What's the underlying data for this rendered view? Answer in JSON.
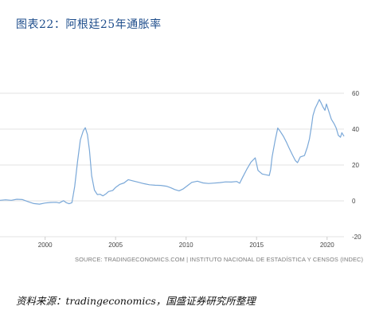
{
  "figure": {
    "title": "图表22：阿根廷25年通胀率",
    "caption": "资料来源：tradingeconomics，国盛证券研究所整理"
  },
  "chart_data": {
    "type": "line",
    "title": "",
    "xlabel": "",
    "ylabel": "",
    "source": "SOURCE: TRADINGECONOMICS.COM | INSTITUTO NACIONAL DE ESTADÍSTICA Y CENSOS (INDEC)",
    "x_ticks": [
      2000,
      2005,
      2010,
      2015,
      2020
    ],
    "y_ticks": [
      60,
      40,
      20,
      0,
      -20
    ],
    "xlim": [
      1996.8,
      2021.2
    ],
    "ylim": [
      -20,
      60
    ],
    "y_axis_position": "right",
    "grid": "horizontal",
    "line_color": "#7aa8d8",
    "series": [
      {
        "name": "",
        "points": [
          [
            1996.8,
            0.3
          ],
          [
            1997.2,
            0.6
          ],
          [
            1997.6,
            0.3
          ],
          [
            1998.0,
            0.9
          ],
          [
            1998.4,
            0.7
          ],
          [
            1998.8,
            -0.5
          ],
          [
            1999.2,
            -1.5
          ],
          [
            1999.6,
            -1.8
          ],
          [
            2000.0,
            -1.2
          ],
          [
            2000.4,
            -0.9
          ],
          [
            2000.8,
            -0.8
          ],
          [
            2001.0,
            -1.2
          ],
          [
            2001.3,
            0.1
          ],
          [
            2001.5,
            -1.0
          ],
          [
            2001.7,
            -1.6
          ],
          [
            2001.9,
            -1.0
          ],
          [
            2002.1,
            8.0
          ],
          [
            2002.3,
            22.0
          ],
          [
            2002.5,
            34.0
          ],
          [
            2002.7,
            39.0
          ],
          [
            2002.85,
            40.8
          ],
          [
            2003.0,
            37.0
          ],
          [
            2003.15,
            28.0
          ],
          [
            2003.3,
            14.0
          ],
          [
            2003.5,
            6.0
          ],
          [
            2003.7,
            3.5
          ],
          [
            2003.9,
            3.7
          ],
          [
            2004.1,
            2.8
          ],
          [
            2004.3,
            3.8
          ],
          [
            2004.5,
            5.2
          ],
          [
            2004.8,
            5.8
          ],
          [
            2005.0,
            7.5
          ],
          [
            2005.3,
            9.2
          ],
          [
            2005.6,
            10.0
          ],
          [
            2005.9,
            11.8
          ],
          [
            2006.2,
            11.2
          ],
          [
            2006.6,
            10.4
          ],
          [
            2007.0,
            9.6
          ],
          [
            2007.4,
            9.0
          ],
          [
            2007.8,
            8.7
          ],
          [
            2008.2,
            8.6
          ],
          [
            2008.6,
            8.2
          ],
          [
            2008.9,
            7.4
          ],
          [
            2009.2,
            6.3
          ],
          [
            2009.5,
            5.6
          ],
          [
            2009.8,
            6.7
          ],
          [
            2010.1,
            8.5
          ],
          [
            2010.4,
            10.3
          ],
          [
            2010.8,
            11.0
          ],
          [
            2011.2,
            10.0
          ],
          [
            2011.6,
            9.7
          ],
          [
            2012.0,
            9.9
          ],
          [
            2012.4,
            10.2
          ],
          [
            2012.8,
            10.6
          ],
          [
            2013.2,
            10.5
          ],
          [
            2013.6,
            10.8
          ],
          [
            2013.8,
            9.8
          ],
          [
            2014.0,
            13.0
          ],
          [
            2014.3,
            17.5
          ],
          [
            2014.6,
            21.5
          ],
          [
            2014.9,
            24.0
          ],
          [
            2015.1,
            17.0
          ],
          [
            2015.4,
            15.0
          ],
          [
            2015.7,
            14.5
          ],
          [
            2015.9,
            14.2
          ],
          [
            2016.0,
            17.5
          ],
          [
            2016.1,
            24.5
          ],
          [
            2016.3,
            33.0
          ],
          [
            2016.5,
            40.6
          ],
          [
            2016.7,
            38.5
          ],
          [
            2016.9,
            36.0
          ],
          [
            2017.1,
            33.0
          ],
          [
            2017.3,
            29.5
          ],
          [
            2017.55,
            25.5
          ],
          [
            2017.75,
            22.5
          ],
          [
            2017.9,
            21.3
          ],
          [
            2018.1,
            24.5
          ],
          [
            2018.4,
            25.3
          ],
          [
            2018.6,
            30.0
          ],
          [
            2018.75,
            34.5
          ],
          [
            2018.9,
            42.0
          ],
          [
            2019.0,
            47.5
          ],
          [
            2019.15,
            51.5
          ],
          [
            2019.3,
            54.0
          ],
          [
            2019.45,
            56.5
          ],
          [
            2019.55,
            55.0
          ],
          [
            2019.7,
            52.5
          ],
          [
            2019.85,
            50.5
          ],
          [
            2019.95,
            54.0
          ],
          [
            2020.1,
            50.5
          ],
          [
            2020.3,
            45.5
          ],
          [
            2020.5,
            43.0
          ],
          [
            2020.65,
            40.5
          ],
          [
            2020.8,
            36.5
          ],
          [
            2020.95,
            35.5
          ],
          [
            2021.05,
            38.0
          ],
          [
            2021.2,
            36.0
          ]
        ]
      }
    ]
  }
}
